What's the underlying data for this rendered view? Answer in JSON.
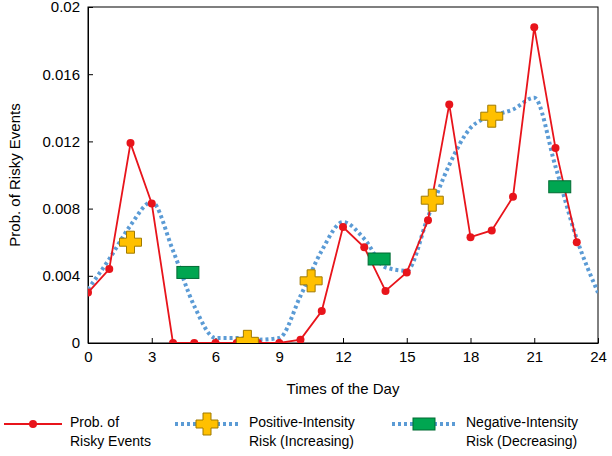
{
  "chart_data": {
    "type": "line",
    "x_label": "Times of the Day",
    "y_label": "Prob. of Risky Events",
    "xlim": [
      0,
      24
    ],
    "xticks": [
      0,
      3,
      6,
      9,
      12,
      15,
      18,
      21,
      24
    ],
    "ylim": [
      0,
      0.02
    ],
    "yticks": [
      0,
      0.004,
      0.008,
      0.012,
      0.016,
      0.02
    ],
    "grid": false,
    "legend": "bottom",
    "series": [
      {
        "name": "Prob. of\nRisky Events",
        "type": "line",
        "color": "#e8141b",
        "marker": "circle",
        "line_style": "solid",
        "x": [
          0,
          1,
          2,
          3,
          4,
          5,
          6,
          7,
          8,
          9,
          10,
          11,
          12,
          13,
          14,
          15,
          16,
          17,
          18,
          19,
          20,
          21,
          22,
          23
        ],
        "values": [
          0.003,
          0.0044,
          0.0119,
          0.0083,
          0.0,
          0.0,
          0.0,
          0.0,
          0.0,
          0.0,
          0.0002,
          0.0019,
          0.0069,
          0.0057,
          0.0031,
          0.0042,
          0.0073,
          0.0142,
          0.0063,
          0.0067,
          0.0087,
          0.0188,
          0.0116,
          0.006
        ]
      },
      {
        "type": "line",
        "color": "#5b9bd5",
        "line_style": "dotted",
        "x": [
          0,
          1,
          2,
          3,
          4,
          5,
          6,
          7,
          8,
          9,
          10,
          11,
          12,
          13,
          14,
          15,
          16,
          17,
          18,
          19,
          20,
          21,
          22,
          23,
          24
        ],
        "values": [
          0.0032,
          0.005,
          0.007,
          0.0084,
          0.0055,
          0.0022,
          0.0003,
          0.0003,
          0.0002,
          0.0003,
          0.0028,
          0.0055,
          0.0072,
          0.0062,
          0.0045,
          0.0043,
          0.0075,
          0.0106,
          0.0128,
          0.0135,
          0.0139,
          0.0146,
          0.0105,
          0.0062,
          0.003
        ]
      },
      {
        "name": "Positive-Intensity\nRisk (Increasing)",
        "type": "scatter",
        "color": "#ffc000",
        "marker": "plus",
        "x": [
          2,
          7.5,
          10.5,
          16.2,
          19
        ],
        "values": [
          0.006,
          0.0001,
          0.0037,
          0.0085,
          0.0135
        ]
      },
      {
        "name": "Negative-Intensity\nRisk (Decreasing)",
        "type": "scatter",
        "color": "#00a651",
        "marker": "square",
        "x": [
          4.7,
          13.7,
          22.2
        ],
        "values": [
          0.0042,
          0.005,
          0.0093
        ]
      }
    ]
  }
}
